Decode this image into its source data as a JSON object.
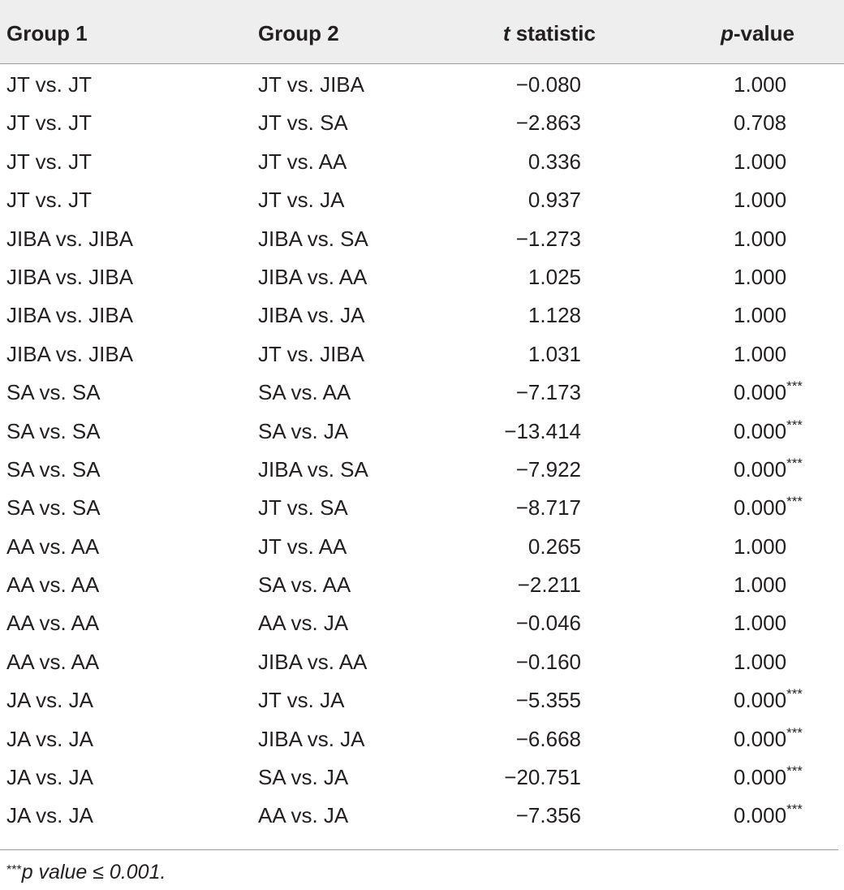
{
  "table": {
    "headers": {
      "group1": "Group 1",
      "group2": "Group 2",
      "t_italic": "t",
      "t_rest": " statistic",
      "p_italic": "p",
      "p_rest": "-value"
    },
    "rows": [
      {
        "group1": "JT vs. JT",
        "group2": "JT vs. JIBA",
        "t": "−0.080",
        "p": "1.000",
        "sig": ""
      },
      {
        "group1": "JT vs. JT",
        "group2": "JT vs. SA",
        "t": "−2.863",
        "p": "0.708",
        "sig": ""
      },
      {
        "group1": "JT vs. JT",
        "group2": "JT vs. AA",
        "t": "0.336",
        "p": "1.000",
        "sig": ""
      },
      {
        "group1": "JT vs. JT",
        "group2": "JT vs. JA",
        "t": "0.937",
        "p": "1.000",
        "sig": ""
      },
      {
        "group1": "JIBA vs. JIBA",
        "group2": "JIBA vs. SA",
        "t": "−1.273",
        "p": "1.000",
        "sig": ""
      },
      {
        "group1": "JIBA vs. JIBA",
        "group2": "JIBA vs. AA",
        "t": "1.025",
        "p": "1.000",
        "sig": ""
      },
      {
        "group1": "JIBA vs. JIBA",
        "group2": "JIBA vs. JA",
        "t": "1.128",
        "p": "1.000",
        "sig": ""
      },
      {
        "group1": "JIBA vs. JIBA",
        "group2": "JT vs. JIBA",
        "t": "1.031",
        "p": "1.000",
        "sig": ""
      },
      {
        "group1": "SA vs. SA",
        "group2": "SA vs. AA",
        "t": "−7.173",
        "p": "0.000",
        "sig": "***"
      },
      {
        "group1": "SA vs. SA",
        "group2": "SA vs. JA",
        "t": "−13.414",
        "p": "0.000",
        "sig": "***"
      },
      {
        "group1": "SA vs. SA",
        "group2": "JIBA vs. SA",
        "t": "−7.922",
        "p": "0.000",
        "sig": "***"
      },
      {
        "group1": "SA vs. SA",
        "group2": "JT vs. SA",
        "t": "−8.717",
        "p": "0.000",
        "sig": "***"
      },
      {
        "group1": "AA vs. AA",
        "group2": "JT vs. AA",
        "t": "0.265",
        "p": "1.000",
        "sig": ""
      },
      {
        "group1": "AA vs. AA",
        "group2": "SA vs. AA",
        "t": "−2.211",
        "p": "1.000",
        "sig": ""
      },
      {
        "group1": "AA vs. AA",
        "group2": "AA vs. JA",
        "t": "−0.046",
        "p": "1.000",
        "sig": ""
      },
      {
        "group1": "AA vs. AA",
        "group2": "JIBA vs. AA",
        "t": "−0.160",
        "p": "1.000",
        "sig": ""
      },
      {
        "group1": "JA vs. JA",
        "group2": "JT vs. JA",
        "t": "−5.355",
        "p": "0.000",
        "sig": "***"
      },
      {
        "group1": "JA vs. JA",
        "group2": "JIBA vs. JA",
        "t": "−6.668",
        "p": "0.000",
        "sig": "***"
      },
      {
        "group1": "JA vs. JA",
        "group2": "SA vs. JA",
        "t": "−20.751",
        "p": "0.000",
        "sig": "***"
      },
      {
        "group1": "JA vs. JA",
        "group2": "AA vs. JA",
        "t": "−7.356",
        "p": "0.000",
        "sig": "***"
      }
    ],
    "footnote": {
      "marker": "***",
      "text": "p value ≤ 0.001."
    }
  }
}
